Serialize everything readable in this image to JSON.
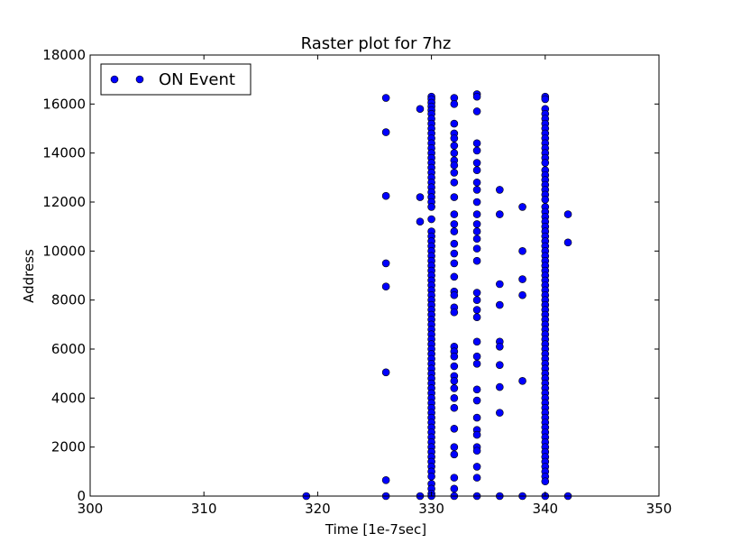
{
  "chart_data": {
    "type": "scatter",
    "title": "Raster plot for 7hz",
    "xlabel": "Time [1e-7sec]",
    "ylabel": "Address",
    "xlim": [
      300,
      350
    ],
    "ylim": [
      0,
      18000
    ],
    "xticks": [
      "300",
      "310",
      "320",
      "330",
      "340",
      "350"
    ],
    "yticks": [
      "0",
      "2000",
      "4000",
      "6000",
      "8000",
      "10000",
      "12000",
      "14000",
      "16000",
      "18000"
    ],
    "grid": false,
    "legend_position": "top-left",
    "marker_color": "#0000ff",
    "series": [
      {
        "name": "ON Event",
        "points": [
          [
            319,
            0
          ],
          [
            326,
            16250
          ],
          [
            326,
            14850
          ],
          [
            326,
            12250
          ],
          [
            326,
            9500
          ],
          [
            326,
            8550
          ],
          [
            326,
            5050
          ],
          [
            326,
            650
          ],
          [
            326,
            0
          ],
          [
            329,
            15800
          ],
          [
            329,
            12200
          ],
          [
            329,
            11200
          ],
          [
            329,
            0
          ],
          [
            330,
            16300
          ],
          [
            330,
            16200
          ],
          [
            330,
            16050
          ],
          [
            330,
            15900
          ],
          [
            330,
            15750
          ],
          [
            330,
            15600
          ],
          [
            330,
            15400
          ],
          [
            330,
            15200
          ],
          [
            330,
            15000
          ],
          [
            330,
            14800
          ],
          [
            330,
            14600
          ],
          [
            330,
            14400
          ],
          [
            330,
            14200
          ],
          [
            330,
            14000
          ],
          [
            330,
            13800
          ],
          [
            330,
            13600
          ],
          [
            330,
            13400
          ],
          [
            330,
            13200
          ],
          [
            330,
            13000
          ],
          [
            330,
            12800
          ],
          [
            330,
            12600
          ],
          [
            330,
            12400
          ],
          [
            330,
            12200
          ],
          [
            330,
            12000
          ],
          [
            330,
            11800
          ],
          [
            330,
            11300
          ],
          [
            330,
            10800
          ],
          [
            330,
            10600
          ],
          [
            330,
            10400
          ],
          [
            330,
            10200
          ],
          [
            330,
            10000
          ],
          [
            330,
            9800
          ],
          [
            330,
            9600
          ],
          [
            330,
            9400
          ],
          [
            330,
            9200
          ],
          [
            330,
            9000
          ],
          [
            330,
            8800
          ],
          [
            330,
            8600
          ],
          [
            330,
            8400
          ],
          [
            330,
            8200
          ],
          [
            330,
            8000
          ],
          [
            330,
            7800
          ],
          [
            330,
            7600
          ],
          [
            330,
            7400
          ],
          [
            330,
            7200
          ],
          [
            330,
            7000
          ],
          [
            330,
            6800
          ],
          [
            330,
            6600
          ],
          [
            330,
            6400
          ],
          [
            330,
            6200
          ],
          [
            330,
            6000
          ],
          [
            330,
            5800
          ],
          [
            330,
            5600
          ],
          [
            330,
            5400
          ],
          [
            330,
            5200
          ],
          [
            330,
            5000
          ],
          [
            330,
            4800
          ],
          [
            330,
            4600
          ],
          [
            330,
            4400
          ],
          [
            330,
            4200
          ],
          [
            330,
            4000
          ],
          [
            330,
            3800
          ],
          [
            330,
            3600
          ],
          [
            330,
            3400
          ],
          [
            330,
            3200
          ],
          [
            330,
            3000
          ],
          [
            330,
            2800
          ],
          [
            330,
            2600
          ],
          [
            330,
            2400
          ],
          [
            330,
            2200
          ],
          [
            330,
            2000
          ],
          [
            330,
            1800
          ],
          [
            330,
            1600
          ],
          [
            330,
            1400
          ],
          [
            330,
            1200
          ],
          [
            330,
            1000
          ],
          [
            330,
            800
          ],
          [
            330,
            500
          ],
          [
            330,
            300
          ],
          [
            330,
            100
          ],
          [
            330,
            0
          ],
          [
            332,
            16250
          ],
          [
            332,
            16000
          ],
          [
            332,
            15200
          ],
          [
            332,
            14800
          ],
          [
            332,
            14600
          ],
          [
            332,
            14300
          ],
          [
            332,
            14000
          ],
          [
            332,
            13700
          ],
          [
            332,
            13500
          ],
          [
            332,
            13200
          ],
          [
            332,
            12800
          ],
          [
            332,
            12200
          ],
          [
            332,
            11500
          ],
          [
            332,
            11100
          ],
          [
            332,
            10800
          ],
          [
            332,
            10300
          ],
          [
            332,
            9900
          ],
          [
            332,
            9500
          ],
          [
            332,
            8950
          ],
          [
            332,
            8350
          ],
          [
            332,
            8200
          ],
          [
            332,
            7700
          ],
          [
            332,
            7500
          ],
          [
            332,
            6100
          ],
          [
            332,
            5900
          ],
          [
            332,
            5700
          ],
          [
            332,
            5300
          ],
          [
            332,
            4900
          ],
          [
            332,
            4700
          ],
          [
            332,
            4400
          ],
          [
            332,
            4000
          ],
          [
            332,
            3600
          ],
          [
            332,
            2750
          ],
          [
            332,
            2000
          ],
          [
            332,
            1700
          ],
          [
            332,
            750
          ],
          [
            332,
            300
          ],
          [
            332,
            0
          ],
          [
            334,
            16400
          ],
          [
            334,
            16300
          ],
          [
            334,
            15700
          ],
          [
            334,
            14400
          ],
          [
            334,
            14100
          ],
          [
            334,
            13600
          ],
          [
            334,
            13300
          ],
          [
            334,
            12800
          ],
          [
            334,
            12500
          ],
          [
            334,
            12000
          ],
          [
            334,
            11500
          ],
          [
            334,
            11100
          ],
          [
            334,
            10800
          ],
          [
            334,
            10500
          ],
          [
            334,
            10100
          ],
          [
            334,
            9600
          ],
          [
            334,
            8300
          ],
          [
            334,
            8000
          ],
          [
            334,
            7600
          ],
          [
            334,
            7300
          ],
          [
            334,
            6300
          ],
          [
            334,
            5700
          ],
          [
            334,
            5400
          ],
          [
            334,
            4350
          ],
          [
            334,
            3900
          ],
          [
            334,
            3200
          ],
          [
            334,
            2700
          ],
          [
            334,
            2500
          ],
          [
            334,
            2000
          ],
          [
            334,
            1850
          ],
          [
            334,
            1200
          ],
          [
            334,
            750
          ],
          [
            334,
            0
          ],
          [
            336,
            12500
          ],
          [
            336,
            11500
          ],
          [
            336,
            8650
          ],
          [
            336,
            7800
          ],
          [
            336,
            6300
          ],
          [
            336,
            6100
          ],
          [
            336,
            5350
          ],
          [
            336,
            4450
          ],
          [
            336,
            3400
          ],
          [
            336,
            0
          ],
          [
            338,
            11800
          ],
          [
            338,
            10000
          ],
          [
            338,
            8850
          ],
          [
            338,
            8200
          ],
          [
            338,
            4700
          ],
          [
            338,
            0
          ],
          [
            340,
            16300
          ],
          [
            340,
            16200
          ],
          [
            340,
            15800
          ],
          [
            340,
            15600
          ],
          [
            340,
            15400
          ],
          [
            340,
            15200
          ],
          [
            340,
            15000
          ],
          [
            340,
            14800
          ],
          [
            340,
            14600
          ],
          [
            340,
            14400
          ],
          [
            340,
            14200
          ],
          [
            340,
            14000
          ],
          [
            340,
            13800
          ],
          [
            340,
            13600
          ],
          [
            340,
            13300
          ],
          [
            340,
            13100
          ],
          [
            340,
            12900
          ],
          [
            340,
            12700
          ],
          [
            340,
            12500
          ],
          [
            340,
            12300
          ],
          [
            340,
            12100
          ],
          [
            340,
            11800
          ],
          [
            340,
            11600
          ],
          [
            340,
            11400
          ],
          [
            340,
            11200
          ],
          [
            340,
            11000
          ],
          [
            340,
            10800
          ],
          [
            340,
            10600
          ],
          [
            340,
            10400
          ],
          [
            340,
            10200
          ],
          [
            340,
            10000
          ],
          [
            340,
            9800
          ],
          [
            340,
            9600
          ],
          [
            340,
            9400
          ],
          [
            340,
            9200
          ],
          [
            340,
            9000
          ],
          [
            340,
            8800
          ],
          [
            340,
            8600
          ],
          [
            340,
            8400
          ],
          [
            340,
            8200
          ],
          [
            340,
            8000
          ],
          [
            340,
            7800
          ],
          [
            340,
            7600
          ],
          [
            340,
            7400
          ],
          [
            340,
            7200
          ],
          [
            340,
            7000
          ],
          [
            340,
            6800
          ],
          [
            340,
            6600
          ],
          [
            340,
            6400
          ],
          [
            340,
            6200
          ],
          [
            340,
            6000
          ],
          [
            340,
            5800
          ],
          [
            340,
            5600
          ],
          [
            340,
            5400
          ],
          [
            340,
            5200
          ],
          [
            340,
            5000
          ],
          [
            340,
            4800
          ],
          [
            340,
            4600
          ],
          [
            340,
            4400
          ],
          [
            340,
            4200
          ],
          [
            340,
            4000
          ],
          [
            340,
            3800
          ],
          [
            340,
            3600
          ],
          [
            340,
            3400
          ],
          [
            340,
            3200
          ],
          [
            340,
            3000
          ],
          [
            340,
            2800
          ],
          [
            340,
            2600
          ],
          [
            340,
            2400
          ],
          [
            340,
            2200
          ],
          [
            340,
            2000
          ],
          [
            340,
            1800
          ],
          [
            340,
            1600
          ],
          [
            340,
            1400
          ],
          [
            340,
            1200
          ],
          [
            340,
            1000
          ],
          [
            340,
            800
          ],
          [
            340,
            600
          ],
          [
            340,
            0
          ],
          [
            342,
            11500
          ],
          [
            342,
            10350
          ],
          [
            342,
            0
          ]
        ]
      }
    ]
  }
}
